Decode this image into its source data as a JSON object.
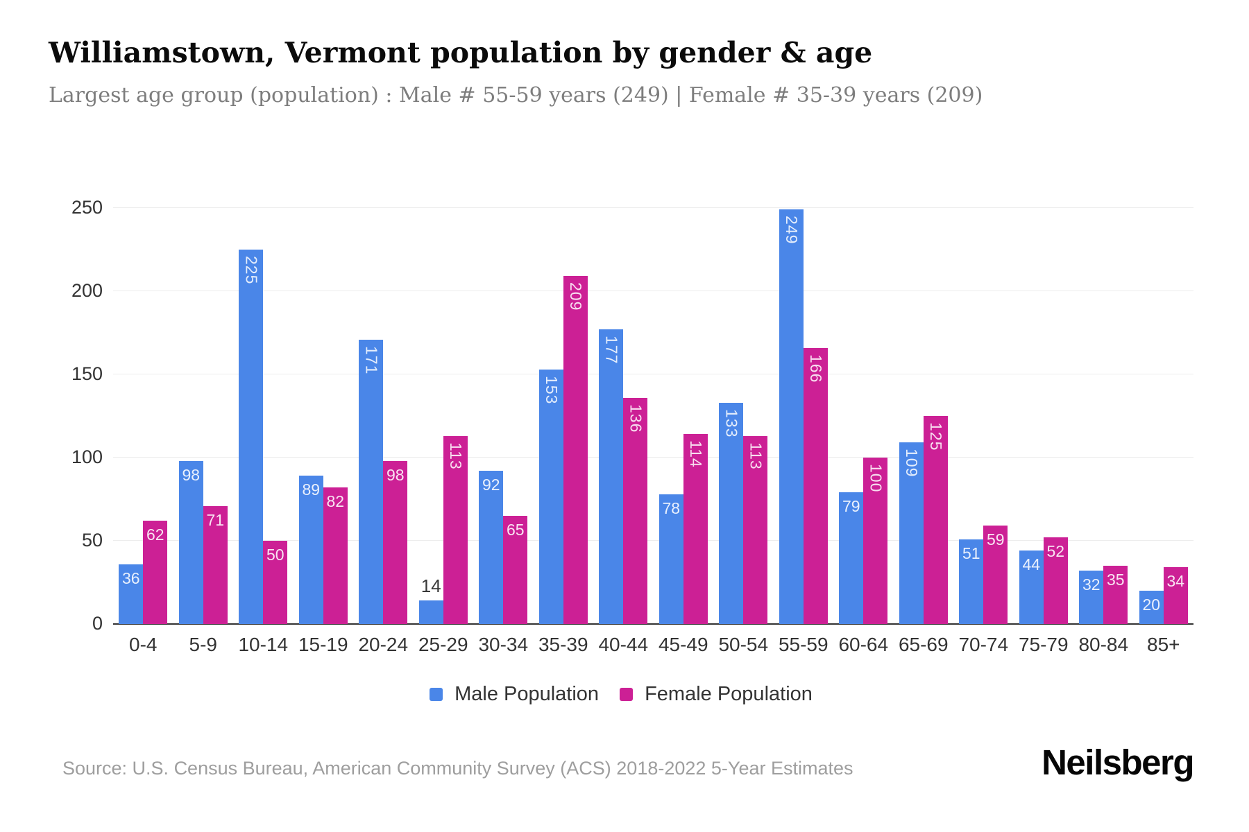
{
  "title": "Williamstown, Vermont population by gender & age",
  "subtitle": "Largest age group (population) : Male # 55-59 years (249) | Female # 35-39 years (209)",
  "source": "Source: U.S. Census Bureau, American Community Survey (ACS) 2018-2022 5-Year Estimates",
  "brand": "Neilsberg",
  "colors": {
    "male": "#4a86e8",
    "female": "#cc2095",
    "grid": "#ededed",
    "axis": "#333333",
    "bar_label_on_bar": "rgba(255,255,255,0.87)",
    "bar_label_above": "#383838",
    "tick_text": "#333333",
    "subtitle_text": "#7d7d7d",
    "source_text": "#9e9e9e"
  },
  "legend": [
    {
      "id": "male",
      "label": "Male Population",
      "color": "#4a86e8"
    },
    {
      "id": "female",
      "label": "Female Population",
      "color": "#cc2095"
    }
  ],
  "chart_data": {
    "type": "bar",
    "title": "Williamstown, Vermont population by gender & age",
    "subtitle": "Largest age group (population) : Male # 55-59 years (249) | Female # 35-39 years (209)",
    "categories": [
      "0-4",
      "5-9",
      "10-14",
      "15-19",
      "20-24",
      "25-29",
      "30-34",
      "35-39",
      "40-44",
      "45-49",
      "50-54",
      "55-59",
      "60-64",
      "65-69",
      "70-74",
      "75-79",
      "80-84",
      "85+"
    ],
    "series": [
      {
        "name": "Male Population",
        "color": "#4a86e8",
        "values": [
          36,
          98,
          225,
          89,
          171,
          14,
          92,
          153,
          177,
          78,
          133,
          249,
          79,
          109,
          51,
          44,
          32,
          20
        ]
      },
      {
        "name": "Female Population",
        "color": "#cc2095",
        "values": [
          62,
          71,
          50,
          82,
          98,
          113,
          65,
          209,
          136,
          114,
          113,
          166,
          100,
          125,
          59,
          52,
          35,
          34
        ]
      }
    ],
    "xlabel": "",
    "ylabel": "",
    "ylim": [
      0,
      250
    ],
    "yticks": [
      0,
      50,
      100,
      150,
      200,
      250
    ],
    "grid": true,
    "legend_position": "bottom"
  }
}
